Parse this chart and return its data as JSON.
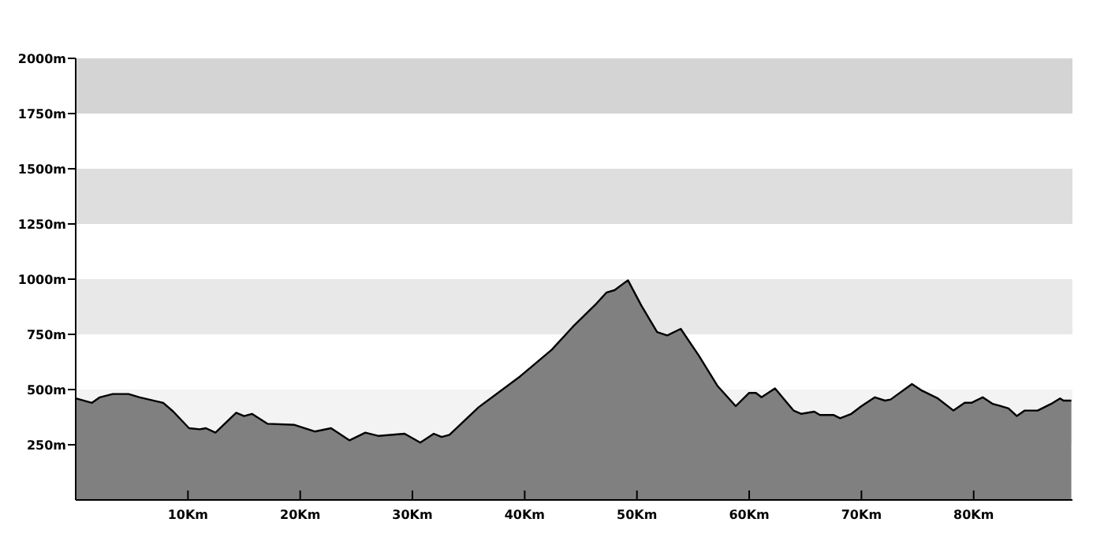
{
  "chart_data": {
    "type": "area",
    "x": [
      0,
      1.45,
      2.15,
      3.3,
      4.7,
      5.7,
      7.8,
      8.7,
      10.1,
      11.05,
      11.6,
      12.45,
      14.3,
      15,
      15.7,
      17.1,
      19.5,
      21.3,
      22.75,
      24.4,
      25.8,
      27,
      29.3,
      30.7,
      31.9,
      32.6,
      33.3,
      35.9,
      39.6,
      42.4,
      44.3,
      46.4,
      47.3,
      48,
      49.2,
      50.4,
      51.8,
      52.7,
      53.9,
      55.5,
      57.2,
      58.8,
      60,
      60.6,
      61.1,
      62.3,
      63.95,
      64.65,
      65.8,
      66.3,
      67.5,
      68.1,
      69.1,
      70,
      71.2,
      72.1,
      72.6,
      74.5,
      75.4,
      76.8,
      78.2,
      79.2,
      79.8,
      80.8,
      81.7,
      83.1,
      83.85,
      84.55,
      85.7,
      86.9,
      87.7,
      88,
      88.7
    ],
    "series": [
      {
        "color": "#808080",
        "values": [
          460,
          440,
          465,
          480,
          480,
          465,
          440,
          400,
          325,
          320,
          325,
          305,
          395,
          380,
          390,
          345,
          340,
          310,
          325,
          270,
          305,
          290,
          300,
          260,
          300,
          285,
          295,
          420,
          560,
          680,
          785,
          890,
          940,
          950,
          995,
          880,
          760,
          745,
          775,
          655,
          515,
          425,
          485,
          485,
          465,
          505,
          405,
          390,
          400,
          385,
          385,
          370,
          390,
          425,
          465,
          450,
          455,
          525,
          495,
          460,
          405,
          440,
          440,
          465,
          435,
          415,
          380,
          405,
          405,
          435,
          460,
          450,
          450
        ]
      }
    ],
    "xlim": [
      0,
      88.8
    ],
    "xticks": [
      {
        "value": 10,
        "label": "10Km"
      },
      {
        "value": 20,
        "label": "20Km"
      },
      {
        "value": 30,
        "label": "30Km"
      },
      {
        "value": 40,
        "label": "40Km"
      },
      {
        "value": 50,
        "label": "50Km"
      },
      {
        "value": 60,
        "label": "60Km"
      },
      {
        "value": 70,
        "label": "70Km"
      },
      {
        "value": 80,
        "label": "80Km"
      }
    ],
    "ylim": [
      0,
      2000
    ],
    "yticks": [
      {
        "value": 250,
        "label": "250m"
      },
      {
        "value": 500,
        "label": "500m"
      },
      {
        "value": 750,
        "label": "750m"
      },
      {
        "value": 1000,
        "label": "1000m"
      },
      {
        "value": 1250,
        "label": "1250m"
      },
      {
        "value": 1500,
        "label": "1500m"
      },
      {
        "value": 1750,
        "label": "1750m"
      },
      {
        "value": 2000,
        "label": "2000m"
      }
    ],
    "bands": [
      {
        "axis": "y",
        "from": 1750,
        "to": 2000,
        "color": "#d4d4d4"
      },
      {
        "axis": "y",
        "from": 1250,
        "to": 1500,
        "color": "#dedede"
      },
      {
        "axis": "y",
        "from": 750,
        "to": 1000,
        "color": "#e8e8e8"
      },
      {
        "axis": "y",
        "from": 250,
        "to": 500,
        "color": "#f3f3f3"
      }
    ],
    "line_style": "solid",
    "grid": false
  }
}
